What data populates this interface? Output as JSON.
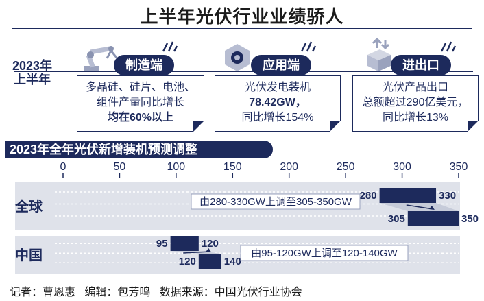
{
  "title": "上半年光伏行业业绩骄人",
  "period_label_line1": "2023年",
  "period_label_line2": "上半年",
  "cards": [
    {
      "heading": "制造端",
      "icon": "robot-arm-icon",
      "lines": [
        "多晶硅、硅片、电池、",
        "组件产量同比增长",
        "均在60%以上"
      ]
    },
    {
      "heading": "应用端",
      "icon": "gear-hexagon-icon",
      "lines": [
        "光伏发电装机",
        "78.42GW，",
        "同比增长154%"
      ]
    },
    {
      "heading": "进出口",
      "icon": "package-arrows-icon",
      "lines": [
        "光伏产品出口",
        "总额超过290亿美元，",
        "同比增长13%"
      ]
    }
  ],
  "chart_title": "2023年全年光伏新增装机预测调整",
  "footer": "记者：曹恩惠   编辑：包芳鸣   数据来源：中国光伏行业协会",
  "colors": {
    "navy": "#1d2a5c",
    "band": "#dfe2ea"
  },
  "chart_data": {
    "type": "bar",
    "orientation": "horizontal-range",
    "xlim": [
      0,
      350
    ],
    "ticks": [
      0,
      50,
      100,
      150,
      200,
      250,
      300,
      350
    ],
    "tick_labels": [
      "0",
      "50",
      "100",
      "150",
      "200",
      "250",
      "300",
      "350"
    ],
    "categories": [
      "全球",
      "中国"
    ],
    "ranges": [
      {
        "category": "全球",
        "before": [
          280,
          330
        ],
        "after": [
          305,
          350
        ],
        "before_labels": [
          "280",
          "330"
        ],
        "after_labels": [
          "305",
          "350"
        ],
        "annotation": "由280-330GW上调至305-350GW"
      },
      {
        "category": "中国",
        "before": [
          95,
          120
        ],
        "after": [
          120,
          140
        ],
        "before_labels": [
          "95",
          "120"
        ],
        "after_labels": [
          "120",
          "140"
        ],
        "annotation": "由95-120GW上调至120-140GW"
      }
    ]
  }
}
